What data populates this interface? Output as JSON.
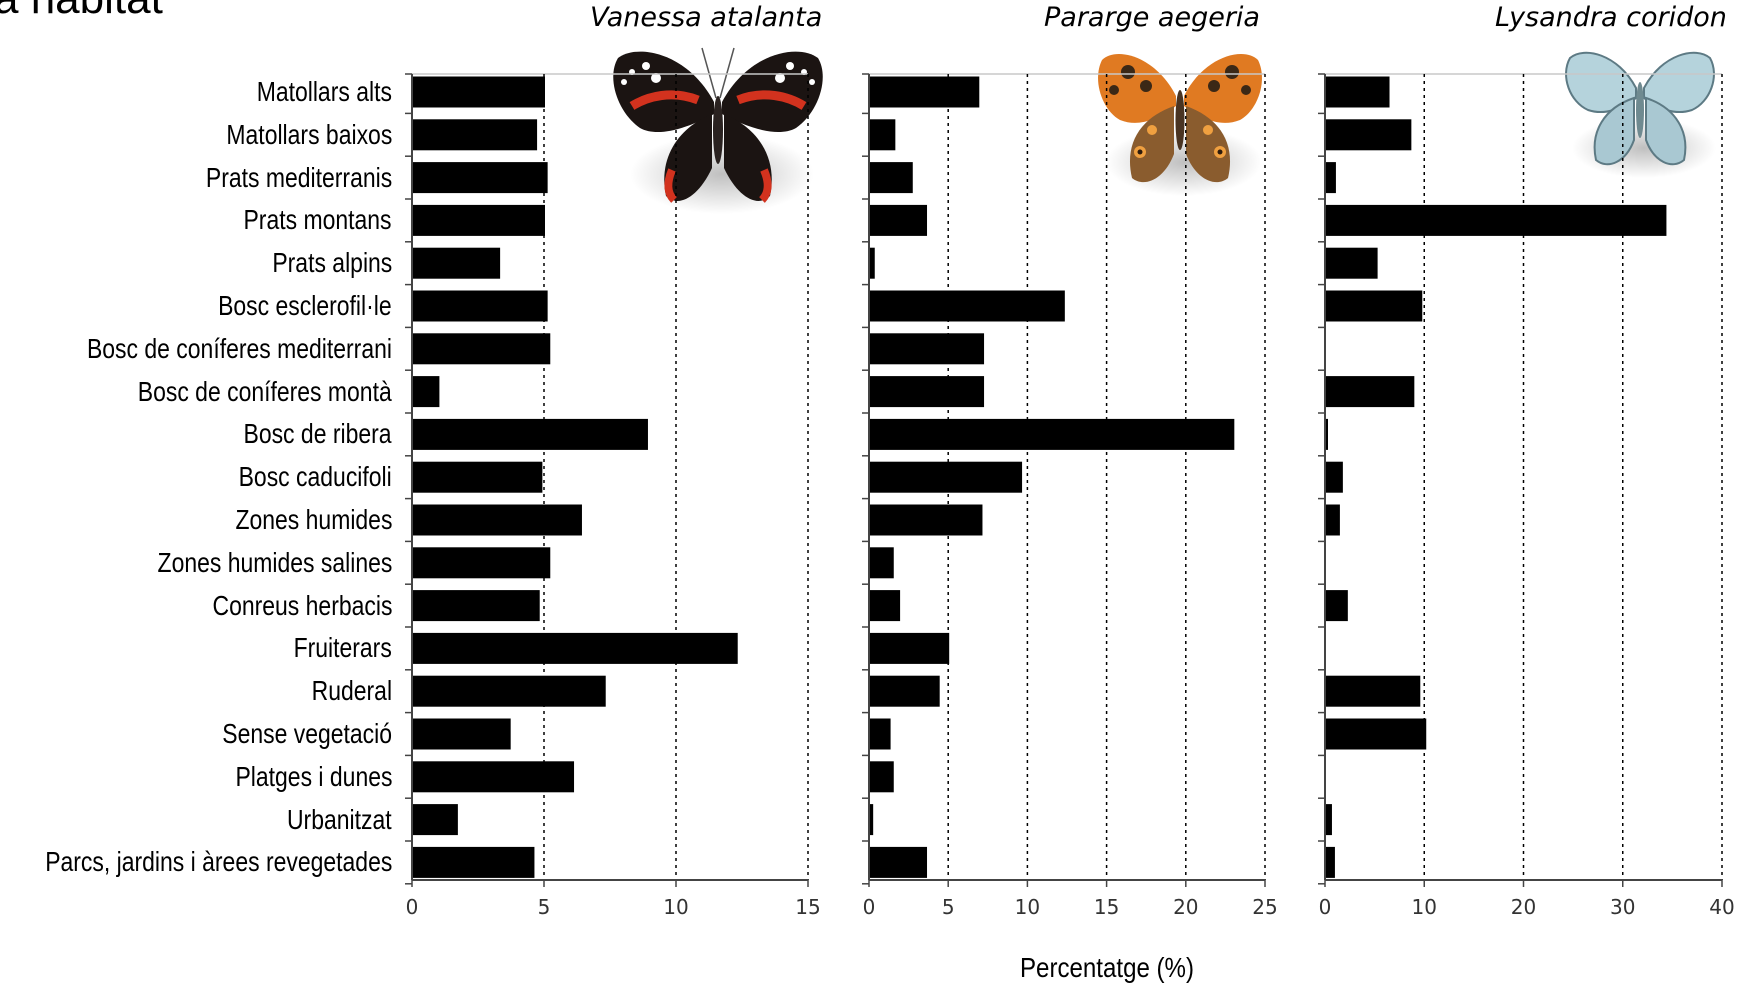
{
  "slide_title": "a habitat",
  "x_axis_label": "Percentatge (%)",
  "bar_color": "#000000",
  "grid_color": "#000000",
  "chart_data": [
    {
      "type": "bar",
      "orientation": "horizontal",
      "title": "Vanessa atalanta",
      "categories": [
        "Matollars alts",
        "Matollars baixos",
        "Prats mediterranis",
        "Prats montans",
        "Prats alpins",
        "Bosc esclerofil·le",
        "Bosc de coníferes mediterrani",
        "Bosc de coníferes montà",
        "Bosc de ribera",
        "Bosc caducifoli",
        "Zones humides",
        "Zones humides salines",
        "Conreus herbacis",
        "Fruiterars",
        "Ruderal",
        "Sense vegetació",
        "Platges i dunes",
        "Urbanitzat",
        "Parcs, jardins i àrees revegetades"
      ],
      "values": [
        5.0,
        4.7,
        5.1,
        5.0,
        3.3,
        5.1,
        5.2,
        1.0,
        8.9,
        4.9,
        6.4,
        5.2,
        4.8,
        12.3,
        7.3,
        3.7,
        6.1,
        1.7,
        4.6
      ],
      "xlim": [
        0,
        15
      ],
      "xticks": [
        "0",
        "5",
        "10",
        "15"
      ],
      "grid": "vertical dotted",
      "image": "red-admiral-butterfly-icon"
    },
    {
      "type": "bar",
      "orientation": "horizontal",
      "title": "Pararge aegeria",
      "categories": [
        "Matollars alts",
        "Matollars baixos",
        "Prats mediterranis",
        "Prats montans",
        "Prats alpins",
        "Bosc esclerofil·le",
        "Bosc de coníferes mediterrani",
        "Bosc de coníferes montà",
        "Bosc de ribera",
        "Bosc caducifoli",
        "Zones humides",
        "Zones humides salines",
        "Conreus herbacis",
        "Fruiterars",
        "Ruderal",
        "Sense vegetació",
        "Platges i dunes",
        "Urbanitzat",
        "Parcs, jardins i àrees revegetades"
      ],
      "values": [
        6.9,
        1.6,
        2.7,
        3.6,
        0.3,
        12.3,
        7.2,
        7.2,
        23.0,
        9.6,
        7.1,
        1.5,
        1.9,
        5.0,
        4.4,
        1.3,
        1.5,
        0.2,
        3.6
      ],
      "xlim": [
        0,
        25
      ],
      "xticks": [
        "0",
        "5",
        "10",
        "15",
        "20",
        "25"
      ],
      "grid": "vertical dotted",
      "image": "speckled-wood-butterfly-icon"
    },
    {
      "type": "bar",
      "orientation": "horizontal",
      "title": "Lysandra coridon",
      "categories": [
        "Matollars alts",
        "Matollars baixos",
        "Prats mediterranis",
        "Prats montans",
        "Prats alpins",
        "Bosc esclerofil·le",
        "Bosc de coníferes mediterrani",
        "Bosc de coníferes montà",
        "Bosc de ribera",
        "Bosc caducifoli",
        "Zones humides",
        "Zones humides salines",
        "Conreus herbacis",
        "Fruiterars",
        "Ruderal",
        "Sense vegetació",
        "Platges i dunes",
        "Urbanitzat",
        "Parcs, jardins i àrees revegetades"
      ],
      "values": [
        6.4,
        8.6,
        1.0,
        34.3,
        5.2,
        9.7,
        0,
        8.9,
        0.2,
        1.7,
        1.4,
        0,
        2.2,
        0,
        9.5,
        10.1,
        0,
        0.6,
        0.9
      ],
      "xlim": [
        0,
        40
      ],
      "xticks": [
        "0",
        "10",
        "20",
        "30",
        "40"
      ],
      "grid": "vertical dotted",
      "image": "chalkhill-blue-butterfly-icon"
    }
  ]
}
